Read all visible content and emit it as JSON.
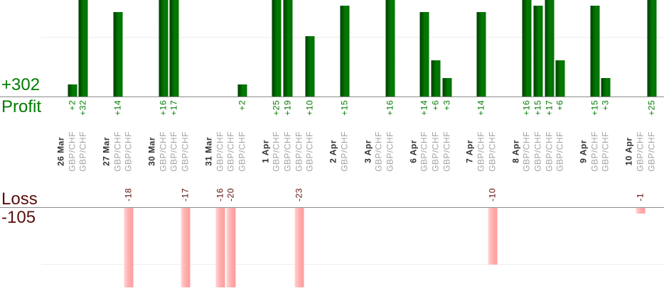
{
  "summary": {
    "profit_total": "+302",
    "profit_axis_label": "Profit",
    "loss_axis_label": "Loss",
    "loss_total": "-105"
  },
  "colors": {
    "profit_text": "#007b00",
    "loss_text": "#5a0e0e",
    "date_text": "#333333",
    "symbol_text": "#a3a3a3",
    "axis_line": "#8c8c8c",
    "gridline": "#ededed",
    "profit_bar": "#027a02",
    "loss_bar": "#ffb0b0"
  },
  "chart_data": {
    "type": "bar",
    "title": "",
    "profit_total": 302,
    "loss_total": -105,
    "gridline_levels": {
      "profit": 10,
      "loss": -10
    },
    "groups": [
      {
        "date": "26 Mar",
        "trades": [
          {
            "symbol": "GBP/CHF",
            "value": 2
          },
          {
            "symbol": "GBP/CHF",
            "value": 32
          }
        ]
      },
      {
        "date": "27 Mar",
        "trades": [
          {
            "symbol": "GBP/CHF",
            "value": 14
          },
          {
            "symbol": "GBP/CHF",
            "value": -18
          }
        ]
      },
      {
        "date": "30 Mar",
        "trades": [
          {
            "symbol": "GBP/CHF",
            "value": 16
          },
          {
            "symbol": "GBP/CHF",
            "value": 17
          },
          {
            "symbol": "GBP/CHF",
            "value": -17
          }
        ]
      },
      {
        "date": "31 Mar",
        "trades": [
          {
            "symbol": "GBP/CHF",
            "value": -16
          },
          {
            "symbol": "GBP/CHF",
            "value": -20
          },
          {
            "symbol": "GBP/CHF",
            "value": 2
          }
        ]
      },
      {
        "date": "1 Apr",
        "trades": [
          {
            "symbol": "GBP/CHF",
            "value": 25
          },
          {
            "symbol": "GBP/CHF",
            "value": 19
          },
          {
            "symbol": "GBP/CHF",
            "value": -23
          },
          {
            "symbol": "GBP/CHF",
            "value": 10
          }
        ]
      },
      {
        "date": "2 Apr",
        "trades": [
          {
            "symbol": "GBP/CHF",
            "value": 15
          }
        ]
      },
      {
        "date": "3 Apr",
        "trades": [
          {
            "symbol": "GBP/CHF",
            "value": 0
          },
          {
            "symbol": "GBP/CHF",
            "value": 16
          }
        ]
      },
      {
        "date": "6 Apr",
        "trades": [
          {
            "symbol": "GBP/CHF",
            "value": 14
          },
          {
            "symbol": "GBP/CHF",
            "value": 6
          },
          {
            "symbol": "GBP/CHF",
            "value": 3
          }
        ]
      },
      {
        "date": "7 Apr",
        "trades": [
          {
            "symbol": "GBP/CHF",
            "value": 14
          },
          {
            "symbol": "GBP/CHF",
            "value": -10
          }
        ]
      },
      {
        "date": "8 Apr",
        "trades": [
          {
            "symbol": "GBP/CHF",
            "value": 16
          },
          {
            "symbol": "GBP/CHF",
            "value": 15
          },
          {
            "symbol": "GBP/CHF",
            "value": 17
          },
          {
            "symbol": "GBP/CHF",
            "value": 6
          }
        ]
      },
      {
        "date": "9 Apr",
        "trades": [
          {
            "symbol": "GBP/CHF",
            "value": 15
          },
          {
            "symbol": "GBP/CHF",
            "value": 3
          }
        ]
      },
      {
        "date": "10 Apr",
        "trades": [
          {
            "symbol": "GBP/CHF",
            "value": -1
          },
          {
            "symbol": "GBP/CHF",
            "value": 25
          }
        ]
      }
    ]
  }
}
